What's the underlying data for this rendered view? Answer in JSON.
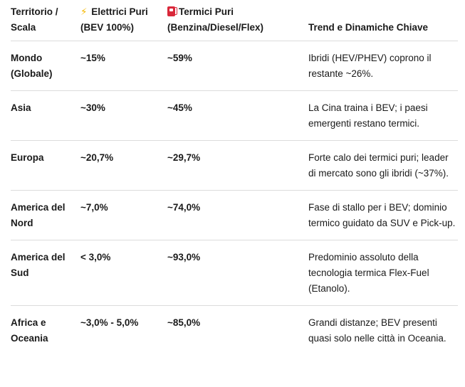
{
  "table": {
    "headers": {
      "territory": "Territorio / Scala",
      "electric_icon": "⚡",
      "electric": "Elettrici Puri (BEV 100%)",
      "thermal_icon": "fuel-pump-icon",
      "thermal": "Termici Puri (Benzina/Diesel/Flex)",
      "trend": "Trend e Dinamiche Chiave"
    },
    "rows": [
      {
        "territory": "Mondo (Globale)",
        "electric": "~15%",
        "thermal": "~59%",
        "trend": "Ibridi (HEV/PHEV) coprono il restante ~26%."
      },
      {
        "territory": "Asia",
        "electric": "~30%",
        "thermal": "~45%",
        "trend": "La Cina traina i BEV; i paesi emergenti restano termici."
      },
      {
        "territory": "Europa",
        "electric": "~20,7%",
        "thermal": "~29,7%",
        "trend": "Forte calo dei termici puri; leader di mercato sono gli ibridi (~37%)."
      },
      {
        "territory": "America del Nord",
        "electric": "~7,0%",
        "thermal": "~74,0%",
        "trend": "Fase di stallo per i BEV; dominio termico guidato da SUV e Pick-up."
      },
      {
        "territory": "America del Sud",
        "electric": "< 3,0%",
        "thermal": "~93,0%",
        "trend": "Predominio assoluto della tecnologia termica Flex-Fuel (Etanolo)."
      },
      {
        "territory": "Africa e Oceania",
        "electric": "~3,0% - 5,0%",
        "thermal": "~85,0%",
        "trend": "Grandi distanze; BEV presenti quasi solo nelle città in Oceania."
      }
    ]
  }
}
